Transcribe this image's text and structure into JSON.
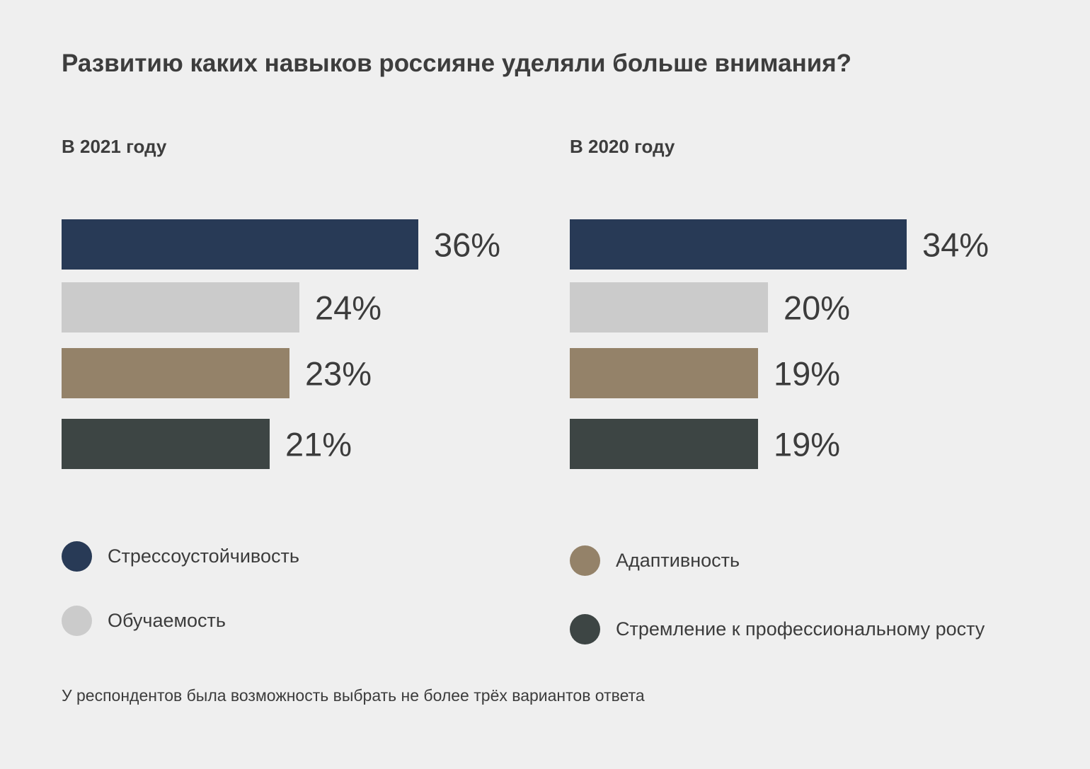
{
  "title": "Развитию каких навыков россияне уделяли больше внимания?",
  "footnote": "У респондентов была возможность выбрать не более трёх вариантов ответа",
  "colors": {
    "stress": "#283a56",
    "learn": "#cbcbcb",
    "adapt": "#948269",
    "growth": "#3d4544",
    "background": "#efefef",
    "text": "#3c3c3c"
  },
  "legend": [
    {
      "label": "Стрессоустойчивость",
      "color": "#283a56"
    },
    {
      "label": "Обучаемость",
      "color": "#cbcbcb"
    },
    {
      "label": "Адаптивность",
      "color": "#948269"
    },
    {
      "label": "Стремление к профессиональному росту",
      "color": "#3d4544"
    }
  ],
  "chart_data": [
    {
      "type": "bar",
      "orientation": "horizontal",
      "title": "В 2021 году",
      "categories": [
        "Стрессоустойчивость",
        "Обучаемость",
        "Адаптивность",
        "Стремление к профессиональному росту"
      ],
      "values": [
        36,
        24,
        23,
        21
      ],
      "value_labels": [
        "36%",
        "24%",
        "23%",
        "21%"
      ],
      "colors": [
        "#283a56",
        "#cbcbcb",
        "#948269",
        "#3d4544"
      ],
      "unit": "%",
      "xlim": [
        0,
        36
      ],
      "grid": false
    },
    {
      "type": "bar",
      "orientation": "horizontal",
      "title": "В 2020 году",
      "categories": [
        "Стрессоустойчивость",
        "Обучаемость",
        "Адаптивность",
        "Стремление к профессиональному росту"
      ],
      "values": [
        34,
        20,
        19,
        19
      ],
      "value_labels": [
        "34%",
        "20%",
        "19%",
        "19%"
      ],
      "colors": [
        "#283a56",
        "#cbcbcb",
        "#948269",
        "#3d4544"
      ],
      "unit": "%",
      "xlim": [
        0,
        36
      ],
      "grid": false
    }
  ]
}
